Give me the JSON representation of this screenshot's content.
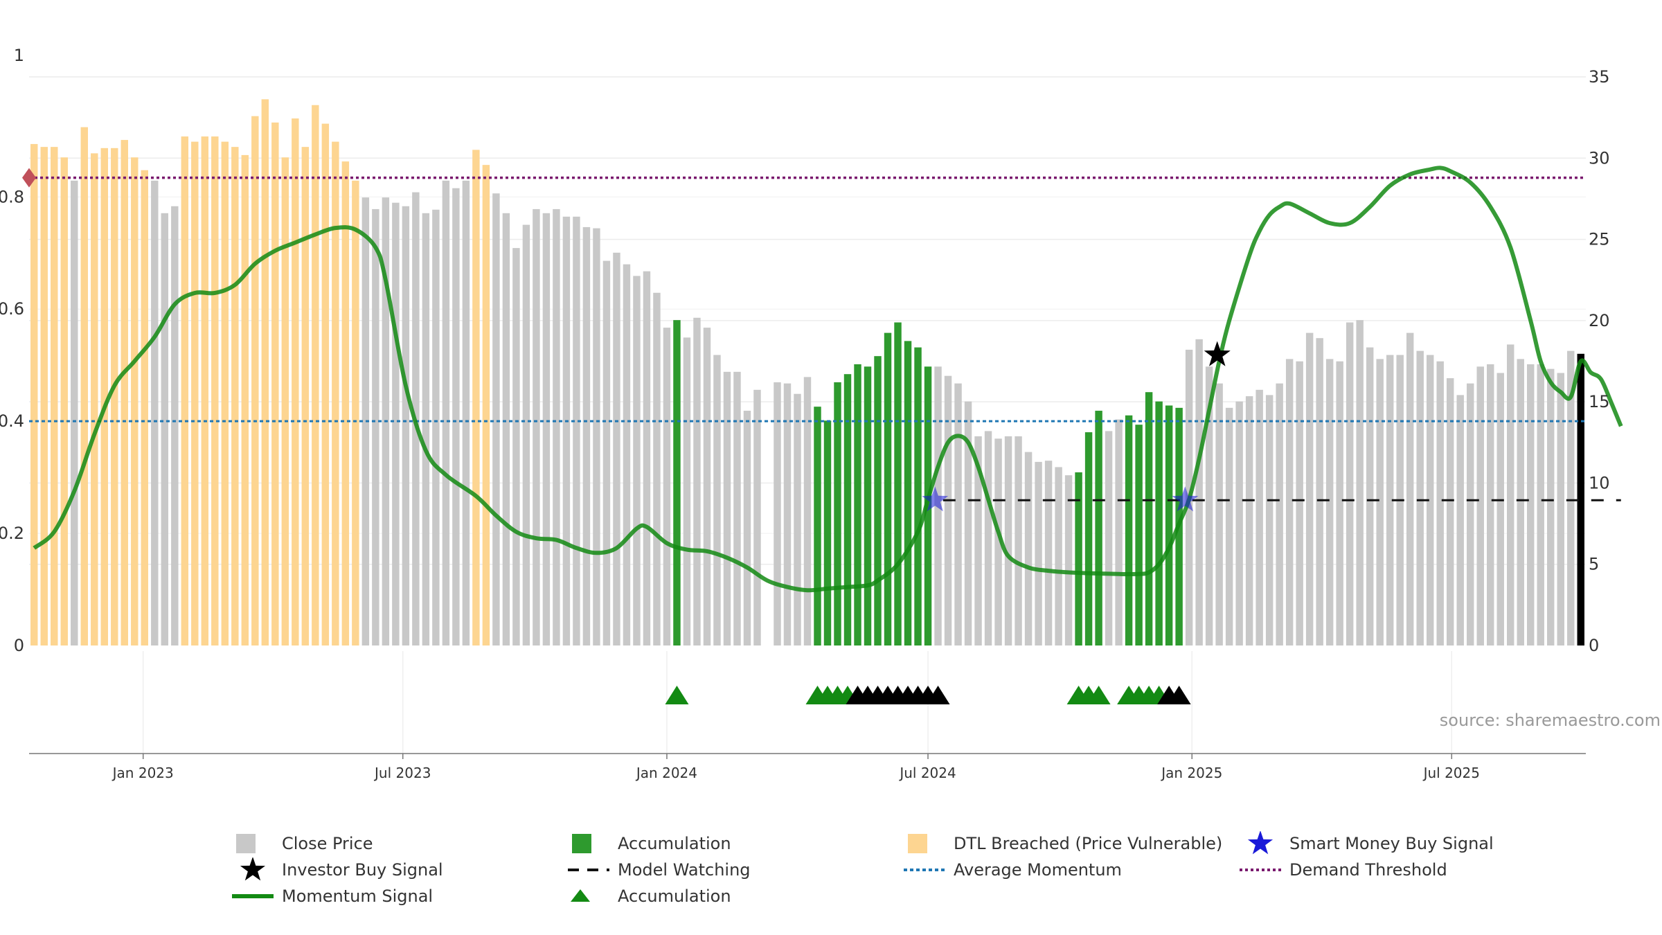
{
  "chart_data": {
    "type": "bar",
    "title": "",
    "xlabel": "",
    "ylabel_left": "",
    "ylabel_right": "",
    "source_text": "source: sharemaestro.com",
    "left_axis": {
      "range": [
        0,
        1
      ],
      "ticks": [
        "0",
        "0.2",
        "0.4",
        "0.6",
        "0.8",
        "1"
      ],
      "tick_values": [
        0,
        0.2,
        0.4,
        0.6,
        0.8,
        1.0
      ]
    },
    "right_axis": {
      "range": [
        0,
        35
      ],
      "ticks": [
        "0",
        "5",
        "10",
        "15",
        "20",
        "25",
        "30",
        "35"
      ],
      "tick_values": [
        0,
        5,
        10,
        15,
        20,
        25,
        30,
        35
      ]
    },
    "x_axis": {
      "range": [
        "2022-10-17",
        "2025-09-22"
      ],
      "ticks": [
        "Jan 2023",
        "Jul 2023",
        "Jan 2024",
        "Jul 2024",
        "Jan 2025",
        "Jul 2025"
      ],
      "tick_dates": [
        "2023-01-01",
        "2023-07-01",
        "2024-01-01",
        "2024-07-01",
        "2025-01-01",
        "2025-07-01"
      ]
    },
    "grid": true,
    "bar_start_date": "2022-10-17",
    "bar_interval_days": 7,
    "bar_values": [
      0.863,
      0.858,
      0.858,
      0.84,
      0.8,
      0.892,
      0.847,
      0.856,
      0.856,
      0.87,
      0.84,
      0.818,
      0.8,
      0.744,
      0.756,
      0.876,
      0.867,
      0.876,
      0.876,
      0.867,
      0.858,
      0.844,
      0.911,
      0.94,
      0.9,
      0.84,
      0.907,
      0.858,
      0.93,
      0.898,
      0.867,
      0.833,
      0.8,
      0.771,
      0.751,
      0.771,
      0.762,
      0.756,
      0.78,
      0.744,
      0.75,
      0.8,
      0.787,
      0.8,
      0.853,
      0.827,
      0.778,
      0.744,
      0.684,
      0.724,
      0.751,
      0.744,
      0.751,
      0.738,
      0.738,
      0.72,
      0.718,
      0.662,
      0.676,
      0.656,
      0.636,
      0.644,
      0.607,
      0.547,
      0.56,
      0.53,
      0.564,
      0.547,
      0.5,
      0.471,
      0.471,
      0.404,
      0.44,
      0,
      0.453,
      0.451,
      0.433,
      0.462,
      0.411,
      0.387,
      0.453,
      0.467,
      0.484,
      0.48,
      0.498,
      0.538,
      0.556,
      0.524,
      0.513,
      0.48,
      0.48,
      0.464,
      0.451,
      0.42,
      0.36,
      0.369,
      0.356,
      0.36,
      0.36,
      0.333,
      0.316,
      0.318,
      0.307,
      0.293,
      0.298,
      0.367,
      0.404,
      0.369,
      0.389,
      0.396,
      0.38,
      0.436,
      0.42,
      0.413,
      0.409,
      0.509,
      0.527,
      0.48,
      0.451,
      0.409,
      0.42,
      0.429,
      0.44,
      0.431,
      0.451,
      0.493,
      0.489,
      0.538,
      0.529,
      0.493,
      0.489,
      0.556,
      0.56,
      0.513,
      0.493,
      0.5,
      0.5,
      0.538,
      0.507,
      0.5,
      0.489,
      0.46,
      0.431,
      0.451,
      0.48,
      0.484,
      0.469,
      0.518,
      0.493,
      0.484,
      0.484,
      0.476,
      0.469,
      0.507,
      0.502
    ],
    "bar_categories": [
      "DTL Breached",
      "DTL Breached",
      "DTL Breached",
      "DTL Breached",
      "Close Price",
      "DTL Breached",
      "DTL Breached",
      "DTL Breached",
      "DTL Breached",
      "DTL Breached",
      "DTL Breached",
      "DTL Breached",
      "Close Price",
      "Close Price",
      "Close Price",
      "DTL Breached",
      "DTL Breached",
      "DTL Breached",
      "DTL Breached",
      "DTL Breached",
      "DTL Breached",
      "DTL Breached",
      "DTL Breached",
      "DTL Breached",
      "DTL Breached",
      "DTL Breached",
      "DTL Breached",
      "DTL Breached",
      "DTL Breached",
      "DTL Breached",
      "DTL Breached",
      "DTL Breached",
      "DTL Breached",
      "Close Price",
      "Close Price",
      "Close Price",
      "Close Price",
      "Close Price",
      "Close Price",
      "Close Price",
      "Close Price",
      "Close Price",
      "Close Price",
      "Close Price",
      "DTL Breached",
      "DTL Breached",
      "Close Price",
      "Close Price",
      "Close Price",
      "Close Price",
      "Close Price",
      "Close Price",
      "Close Price",
      "Close Price",
      "Close Price",
      "Close Price",
      "Close Price",
      "Close Price",
      "Close Price",
      "Close Price",
      "Close Price",
      "Close Price",
      "Close Price",
      "Close Price",
      "Accumulation",
      "Close Price",
      "Close Price",
      "Close Price",
      "Close Price",
      "Close Price",
      "Close Price",
      "Close Price",
      "Close Price",
      "Close Price",
      "Close Price",
      "Close Price",
      "Close Price",
      "Close Price",
      "Accumulation",
      "Accumulation",
      "Accumulation",
      "Accumulation",
      "Accumulation",
      "Accumulation",
      "Accumulation",
      "Accumulation",
      "Accumulation",
      "Accumulation",
      "Accumulation",
      "Accumulation",
      "Close Price",
      "Close Price",
      "Close Price",
      "Close Price",
      "Close Price",
      "Close Price",
      "Close Price",
      "Close Price",
      "Close Price",
      "Close Price",
      "Close Price",
      "Close Price",
      "Close Price",
      "Close Price",
      "Accumulation",
      "Accumulation",
      "Accumulation",
      "Close Price",
      "Close Price",
      "Accumulation",
      "Accumulation",
      "Accumulation",
      "Accumulation",
      "Accumulation",
      "Accumulation",
      "Close Price",
      "Close Price",
      "Close Price",
      "Close Price",
      "Close Price",
      "Close Price",
      "Close Price",
      "Close Price",
      "Close Price",
      "Close Price",
      "Close Price",
      "Close Price",
      "Close Price",
      "Close Price",
      "Close Price",
      "Close Price",
      "Close Price",
      "Close Price",
      "Close Price",
      "Close Price",
      "Close Price",
      "Close Price",
      "Close Price",
      "Close Price",
      "Close Price",
      "Close Price",
      "Close Price",
      "Close Price",
      "Close Price",
      "Close Price",
      "Close Price",
      "Close Price",
      "Close Price",
      "Close Price",
      "Close Price",
      "Close Price",
      "Close Price",
      "Close Price",
      "Close Price"
    ],
    "momentum_signal": [
      [
        0,
        6
      ],
      [
        2,
        7
      ],
      [
        4,
        9.5
      ],
      [
        6,
        13
      ],
      [
        8,
        16
      ],
      [
        10,
        17.5
      ],
      [
        12,
        19
      ],
      [
        14,
        21
      ],
      [
        16,
        21.7
      ],
      [
        18,
        21.7
      ],
      [
        20,
        22.2
      ],
      [
        22,
        23.5
      ],
      [
        24,
        24.3
      ],
      [
        26,
        24.8
      ],
      [
        28,
        25.3
      ],
      [
        30,
        25.7
      ],
      [
        32,
        25.6
      ],
      [
        34,
        24.5
      ],
      [
        35,
        22.5
      ],
      [
        37,
        16
      ],
      [
        39,
        12
      ],
      [
        41,
        10.5
      ],
      [
        44,
        9.2
      ],
      [
        46,
        8
      ],
      [
        48,
        7
      ],
      [
        50,
        6.6
      ],
      [
        52,
        6.5
      ],
      [
        54,
        6
      ],
      [
        56,
        5.7
      ],
      [
        58,
        6
      ],
      [
        60,
        7.2
      ],
      [
        61,
        7.3
      ],
      [
        63,
        6.3
      ],
      [
        65,
        5.9
      ],
      [
        67,
        5.8
      ],
      [
        69,
        5.4
      ],
      [
        71,
        4.8
      ],
      [
        73,
        4
      ],
      [
        75,
        3.6
      ],
      [
        77,
        3.4
      ],
      [
        79,
        3.5
      ],
      [
        81,
        3.6
      ],
      [
        83,
        3.7
      ],
      [
        84,
        4
      ],
      [
        86,
        5
      ],
      [
        88,
        7
      ],
      [
        89,
        9
      ],
      [
        90,
        11
      ],
      [
        91,
        12.5
      ],
      [
        92,
        12.9
      ],
      [
        93,
        12.5
      ],
      [
        94,
        11
      ],
      [
        95,
        9
      ],
      [
        96,
        7
      ],
      [
        97,
        5.5
      ],
      [
        99,
        4.8
      ],
      [
        101,
        4.6
      ],
      [
        103,
        4.5
      ],
      [
        105,
        4.45
      ],
      [
        108,
        4.4
      ],
      [
        110,
        4.4
      ],
      [
        111,
        4.5
      ],
      [
        112,
        5
      ],
      [
        113,
        6
      ],
      [
        114,
        7.5
      ],
      [
        115,
        9
      ],
      [
        116,
        11.5
      ],
      [
        117,
        14.5
      ],
      [
        118,
        17.5
      ],
      [
        119,
        20
      ],
      [
        121,
        24
      ],
      [
        122,
        25.5
      ],
      [
        123,
        26.5
      ],
      [
        124,
        27
      ],
      [
        125,
        27.2
      ],
      [
        127,
        26.6
      ],
      [
        129,
        26
      ],
      [
        131,
        26
      ],
      [
        133,
        27
      ],
      [
        135,
        28.3
      ],
      [
        137,
        29
      ],
      [
        139,
        29.3
      ],
      [
        140,
        29.4
      ],
      [
        141,
        29.2
      ],
      [
        143,
        28.5
      ],
      [
        145,
        27
      ],
      [
        147,
        24.5
      ],
      [
        149,
        20
      ],
      [
        150,
        17.5
      ],
      [
        151,
        16.2
      ],
      [
        152,
        15.6
      ],
      [
        153,
        15.3
      ],
      [
        154,
        17.5
      ],
      [
        155,
        16.8
      ],
      [
        156,
        16.4
      ],
      [
        157,
        15
      ],
      [
        158,
        13.5
      ]
    ],
    "demand_threshold": 0.805,
    "average_momentum": 0.386,
    "model_watching": {
      "y": 0.25,
      "segments": [
        [
          91,
          158
        ]
      ]
    },
    "accumulation_markers": [
      64,
      78,
      79,
      80,
      81,
      104,
      105,
      106,
      109,
      110,
      111,
      112
    ],
    "investor_markers": [
      82,
      83,
      84,
      85,
      86,
      87,
      88,
      89,
      90,
      113,
      114
    ],
    "smart_money_signals": [
      {
        "x": 89.7,
        "y": 0.25
      },
      {
        "x": 114.6,
        "y": 0.25
      }
    ],
    "investor_buy_signals": [
      {
        "x": 117.8,
        "y": 0.5
      }
    ],
    "threshold_start_marker": {
      "x": -0.5,
      "y": 0.805
    },
    "colors": {
      "close_price": "#c8c8c8",
      "accumulation": "#2e9a2e",
      "dtl_breached": "#fdd591",
      "momentum": "#138a13",
      "average_momentum": "#1f77b4",
      "demand_threshold": "#7a1a6e",
      "model_watching": "#111111",
      "smart_money": "#1a1ad8",
      "investor": "#000000",
      "accumulation_marker": "#138a13",
      "diamond": "#c0505a"
    },
    "legend": {
      "close_price": "Close Price",
      "accumulation": "Accumulation",
      "dtl_breached": "DTL Breached (Price Vulnerable)",
      "smart_money": "Smart Money Buy Signal",
      "investor": "Investor Buy Signal",
      "model_watching": "Model Watching",
      "average_momentum": "Average Momentum",
      "demand_threshold": "Demand Threshold",
      "momentum": "Momentum Signal",
      "accumulation_marker": "Accumulation"
    }
  }
}
